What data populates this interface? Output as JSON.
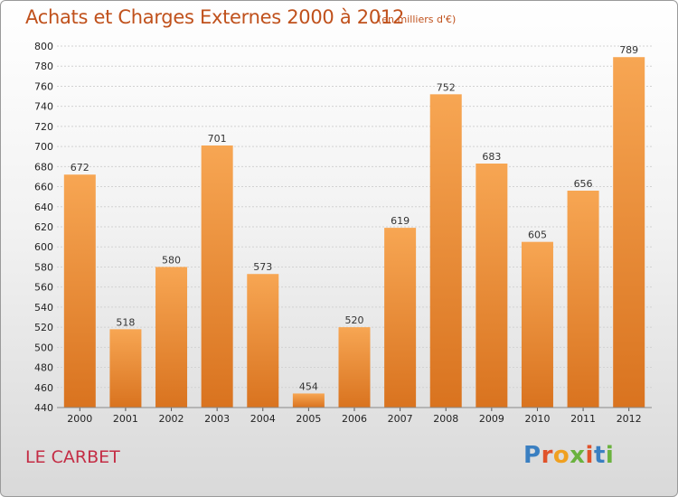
{
  "header": {
    "title": "Achats et Charges Externes 2000 à 2012",
    "subtitle": "(en milliers d'€)"
  },
  "footer": {
    "city": "LE CARBET",
    "logo_text": "Proxiti"
  },
  "colors": {
    "bar_top": "#f7a653",
    "bar_bottom": "#d9731f",
    "title": "#c0511c",
    "city": "#c42d45"
  },
  "chart_data": {
    "type": "bar",
    "categories": [
      "2000",
      "2001",
      "2002",
      "2003",
      "2004",
      "2005",
      "2006",
      "2007",
      "2008",
      "2009",
      "2010",
      "2011",
      "2012"
    ],
    "values": [
      672,
      518,
      580,
      701,
      573,
      454,
      520,
      619,
      752,
      683,
      605,
      656,
      789
    ],
    "title": "Achats et Charges Externes 2000 à 2012",
    "ylim": [
      440,
      800
    ],
    "yticks": [
      440,
      460,
      480,
      500,
      520,
      540,
      560,
      580,
      600,
      620,
      640,
      660,
      680,
      700,
      720,
      740,
      760,
      780,
      800
    ],
    "grid": true,
    "data_labels": true
  }
}
